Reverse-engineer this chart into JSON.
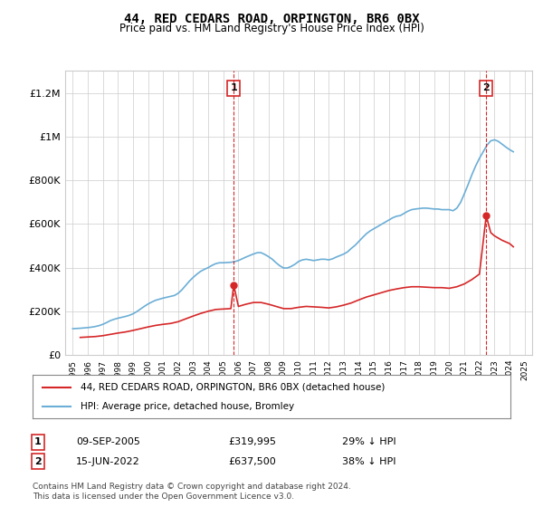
{
  "title": "44, RED CEDARS ROAD, ORPINGTON, BR6 0BX",
  "subtitle": "Price paid vs. HM Land Registry's House Price Index (HPI)",
  "legend_red": "44, RED CEDARS ROAD, ORPINGTON, BR6 0BX (detached house)",
  "legend_blue": "HPI: Average price, detached house, Bromley",
  "annotation1_label": "1",
  "annotation1_date": "09-SEP-2005",
  "annotation1_price": "£319,995",
  "annotation1_hpi": "29% ↓ HPI",
  "annotation1_year": 2005.69,
  "annotation1_value": 319995,
  "annotation2_label": "2",
  "annotation2_date": "15-JUN-2022",
  "annotation2_price": "£637,500",
  "annotation2_hpi": "38% ↓ HPI",
  "annotation2_year": 2022.45,
  "annotation2_value": 637500,
  "footer": "Contains HM Land Registry data © Crown copyright and database right 2024.\nThis data is licensed under the Open Government Licence v3.0.",
  "hpi_years": [
    1995.0,
    1995.25,
    1995.5,
    1995.75,
    1996.0,
    1996.25,
    1996.5,
    1996.75,
    1997.0,
    1997.25,
    1997.5,
    1997.75,
    1998.0,
    1998.25,
    1998.5,
    1998.75,
    1999.0,
    1999.25,
    1999.5,
    1999.75,
    2000.0,
    2000.25,
    2000.5,
    2000.75,
    2001.0,
    2001.25,
    2001.5,
    2001.75,
    2002.0,
    2002.25,
    2002.5,
    2002.75,
    2003.0,
    2003.25,
    2003.5,
    2003.75,
    2004.0,
    2004.25,
    2004.5,
    2004.75,
    2005.0,
    2005.25,
    2005.5,
    2005.75,
    2006.0,
    2006.25,
    2006.5,
    2006.75,
    2007.0,
    2007.25,
    2007.5,
    2007.75,
    2008.0,
    2008.25,
    2008.5,
    2008.75,
    2009.0,
    2009.25,
    2009.5,
    2009.75,
    2010.0,
    2010.25,
    2010.5,
    2010.75,
    2011.0,
    2011.25,
    2011.5,
    2011.75,
    2012.0,
    2012.25,
    2012.5,
    2012.75,
    2013.0,
    2013.25,
    2013.5,
    2013.75,
    2014.0,
    2014.25,
    2014.5,
    2014.75,
    2015.0,
    2015.25,
    2015.5,
    2015.75,
    2016.0,
    2016.25,
    2016.5,
    2016.75,
    2017.0,
    2017.25,
    2017.5,
    2017.75,
    2018.0,
    2018.25,
    2018.5,
    2018.75,
    2019.0,
    2019.25,
    2019.5,
    2019.75,
    2020.0,
    2020.25,
    2020.5,
    2020.75,
    2021.0,
    2021.25,
    2021.5,
    2021.75,
    2022.0,
    2022.25,
    2022.5,
    2022.75,
    2023.0,
    2023.25,
    2023.5,
    2023.75,
    2024.0,
    2024.25
  ],
  "hpi_values": [
    120000,
    121000,
    122000,
    123500,
    125000,
    127000,
    130000,
    134000,
    140000,
    148000,
    157000,
    163000,
    168000,
    172000,
    176000,
    181000,
    188000,
    198000,
    210000,
    222000,
    233000,
    242000,
    250000,
    255000,
    260000,
    264000,
    268000,
    272000,
    282000,
    298000,
    318000,
    338000,
    355000,
    370000,
    383000,
    392000,
    400000,
    410000,
    418000,
    422000,
    422000,
    423000,
    424000,
    427000,
    432000,
    440000,
    448000,
    455000,
    462000,
    468000,
    468000,
    460000,
    450000,
    438000,
    422000,
    408000,
    398000,
    398000,
    405000,
    415000,
    428000,
    435000,
    438000,
    435000,
    432000,
    435000,
    438000,
    438000,
    435000,
    440000,
    448000,
    455000,
    462000,
    472000,
    488000,
    502000,
    520000,
    538000,
    555000,
    568000,
    578000,
    588000,
    598000,
    608000,
    618000,
    628000,
    635000,
    638000,
    648000,
    658000,
    665000,
    668000,
    670000,
    672000,
    672000,
    670000,
    668000,
    668000,
    665000,
    665000,
    665000,
    660000,
    672000,
    698000,
    738000,
    780000,
    825000,
    865000,
    900000,
    930000,
    960000,
    980000,
    985000,
    978000,
    965000,
    952000,
    940000,
    930000
  ],
  "red_years": [
    1995.5,
    1996.0,
    1996.5,
    1997.0,
    1997.5,
    1998.0,
    1998.5,
    1999.0,
    1999.5,
    2000.0,
    2000.5,
    2001.0,
    2001.5,
    2002.0,
    2002.5,
    2003.0,
    2003.5,
    2004.0,
    2004.5,
    2005.0,
    2005.5,
    2005.69,
    2006.0,
    2006.5,
    2007.0,
    2007.5,
    2008.0,
    2008.5,
    2009.0,
    2009.5,
    2010.0,
    2010.5,
    2011.0,
    2011.5,
    2012.0,
    2012.5,
    2013.0,
    2013.5,
    2014.0,
    2014.5,
    2015.0,
    2015.5,
    2016.0,
    2016.5,
    2017.0,
    2017.5,
    2018.0,
    2018.5,
    2019.0,
    2019.5,
    2020.0,
    2020.5,
    2021.0,
    2021.5,
    2022.0,
    2022.45,
    2022.75,
    2023.0,
    2023.5,
    2024.0,
    2024.25
  ],
  "red_values": [
    80000,
    82000,
    84000,
    88000,
    94000,
    100000,
    105000,
    112000,
    120000,
    128000,
    135000,
    140000,
    144000,
    152000,
    165000,
    178000,
    190000,
    200000,
    208000,
    210000,
    212000,
    319995,
    222000,
    232000,
    240000,
    240000,
    232000,
    222000,
    212000,
    212000,
    218000,
    222000,
    220000,
    218000,
    215000,
    220000,
    228000,
    238000,
    252000,
    265000,
    275000,
    285000,
    295000,
    302000,
    308000,
    312000,
    312000,
    310000,
    308000,
    308000,
    305000,
    312000,
    325000,
    345000,
    370000,
    637500,
    560000,
    545000,
    525000,
    510000,
    495000
  ],
  "ylim": [
    0,
    1300000
  ],
  "xlim": [
    1994.5,
    2025.5
  ],
  "yticks": [
    0,
    200000,
    400000,
    600000,
    800000,
    1000000,
    1200000
  ],
  "ytick_labels": [
    "£0",
    "£200K",
    "£400K",
    "£600K",
    "£800K",
    "£1M",
    "£1.2M"
  ],
  "xtick_years": [
    1995,
    1996,
    1997,
    1998,
    1999,
    2000,
    2001,
    2002,
    2003,
    2004,
    2005,
    2006,
    2007,
    2008,
    2009,
    2010,
    2011,
    2012,
    2013,
    2014,
    2015,
    2016,
    2017,
    2018,
    2019,
    2020,
    2021,
    2022,
    2023,
    2024,
    2025
  ],
  "blue_color": "#6baed6",
  "red_color": "#d62728",
  "dashed_color": "#d62728",
  "annotation_box_color": "#d62728",
  "grid_color": "#cccccc",
  "bg_color": "#ffffff",
  "plot_bg_color": "#ffffff"
}
